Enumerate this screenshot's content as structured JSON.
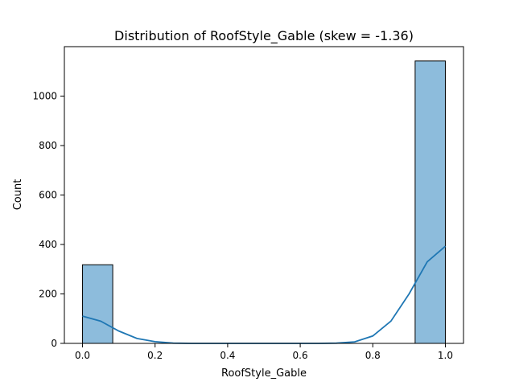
{
  "chart_data": {
    "type": "bar",
    "title": "Distribution of RoofStyle_Gable (skew = -1.36)",
    "xlabel": "RoofStyle_Gable",
    "ylabel": "Count",
    "xlim": [
      -0.05,
      1.05
    ],
    "ylim": [
      0,
      1200
    ],
    "xticks": [
      0.0,
      0.2,
      0.4,
      0.6,
      0.8,
      1.0
    ],
    "xtick_labels": [
      "0.0",
      "0.2",
      "0.4",
      "0.6",
      "0.8",
      "1.0"
    ],
    "yticks": [
      0,
      200,
      400,
      600,
      800,
      1000
    ],
    "ytick_labels": [
      "0",
      "200",
      "400",
      "600",
      "800",
      "1000"
    ],
    "bins": [
      {
        "x0": 0.0,
        "x1": 0.0833,
        "count": 318
      },
      {
        "x0": 0.0833,
        "x1": 0.1667,
        "count": 0
      },
      {
        "x0": 0.1667,
        "x1": 0.25,
        "count": 0
      },
      {
        "x0": 0.25,
        "x1": 0.3333,
        "count": 0
      },
      {
        "x0": 0.3333,
        "x1": 0.4167,
        "count": 0
      },
      {
        "x0": 0.4167,
        "x1": 0.5,
        "count": 0
      },
      {
        "x0": 0.5,
        "x1": 0.5833,
        "count": 0
      },
      {
        "x0": 0.5833,
        "x1": 0.6667,
        "count": 0
      },
      {
        "x0": 0.6667,
        "x1": 0.75,
        "count": 0
      },
      {
        "x0": 0.75,
        "x1": 0.8333,
        "count": 0
      },
      {
        "x0": 0.8333,
        "x1": 0.9167,
        "count": 0
      },
      {
        "x0": 0.9167,
        "x1": 1.0,
        "count": 1142
      }
    ],
    "kde": {
      "x": [
        0,
        0.05,
        0.1,
        0.15,
        0.2,
        0.25,
        0.3,
        0.35,
        0.4,
        0.45,
        0.5,
        0.55,
        0.6,
        0.65,
        0.7,
        0.75,
        0.8,
        0.85,
        0.9,
        0.95,
        1.0
      ],
      "y": [
        110,
        90,
        50,
        20,
        7,
        1,
        0,
        0,
        0,
        0,
        0,
        0,
        0,
        0,
        1,
        6,
        30,
        90,
        200,
        330,
        393
      ]
    },
    "bar_color": "#8dbcdc",
    "bar_edge_color": "#000000",
    "kde_color": "#1f77b4",
    "grid": false,
    "legend": "none"
  }
}
